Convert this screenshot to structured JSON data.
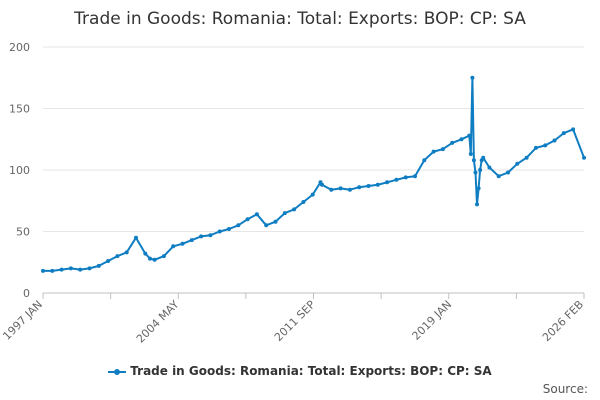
{
  "chart_data": {
    "type": "line",
    "title": "Trade in Goods: Romania: Total: Exports: BOP: CP: SA",
    "xlabel": "",
    "ylabel": "",
    "ylim": [
      0,
      200
    ],
    "y_ticks": [
      "0",
      "50",
      "100",
      "150",
      "200"
    ],
    "x_tick_labels": [
      "1997 JAN",
      "2004 MAY",
      "2011 SEP",
      "2019 JAN",
      "2026 FEB"
    ],
    "x_tick_dates": [
      "1997-01",
      "2004-05",
      "2011-09",
      "2019-01",
      "2026-02"
    ],
    "grid": true,
    "legend_position": "bottom",
    "color": "#0f7dc2",
    "series": [
      {
        "name": "Trade in Goods: Romania: Total: Exports: BOP: CP: SA",
        "x": [
          "1997-01",
          "1997-07",
          "1998-01",
          "1998-07",
          "1999-01",
          "1999-07",
          "2000-01",
          "2000-07",
          "2001-01",
          "2001-07",
          "2002-01",
          "2002-07",
          "2002-10",
          "2003-01",
          "2003-07",
          "2004-01",
          "2004-07",
          "2005-01",
          "2005-07",
          "2006-01",
          "2006-07",
          "2007-01",
          "2007-07",
          "2008-01",
          "2008-07",
          "2009-01",
          "2009-07",
          "2010-01",
          "2010-07",
          "2011-01",
          "2011-07",
          "2011-12",
          "2012-01",
          "2012-07",
          "2013-01",
          "2013-07",
          "2014-01",
          "2014-07",
          "2015-01",
          "2015-07",
          "2016-01",
          "2016-07",
          "2017-01",
          "2017-07",
          "2018-01",
          "2018-07",
          "2019-01",
          "2019-07",
          "2019-12",
          "2020-01",
          "2020-02",
          "2020-03",
          "2020-04",
          "2020-05",
          "2020-06",
          "2020-07",
          "2020-08",
          "2020-09",
          "2021-01",
          "2021-07",
          "2022-01",
          "2022-07",
          "2023-01",
          "2023-07",
          "2024-01",
          "2024-07",
          "2025-01",
          "2025-07",
          "2026-02"
        ],
        "values": [
          18,
          18,
          19,
          20,
          19,
          20,
          22,
          26,
          30,
          33,
          45,
          32,
          28,
          27,
          30,
          38,
          40,
          43,
          46,
          47,
          50,
          52,
          55,
          60,
          64,
          55,
          58,
          65,
          68,
          74,
          80,
          90,
          88,
          84,
          85,
          84,
          86,
          87,
          88,
          90,
          92,
          94,
          95,
          108,
          115,
          117,
          122,
          125,
          128,
          113,
          175,
          108,
          98,
          72,
          85,
          100,
          108,
          110,
          102,
          95,
          98,
          105,
          110,
          118,
          120,
          124,
          130,
          133,
          110
        ]
      }
    ],
    "source_label": "Source:"
  }
}
